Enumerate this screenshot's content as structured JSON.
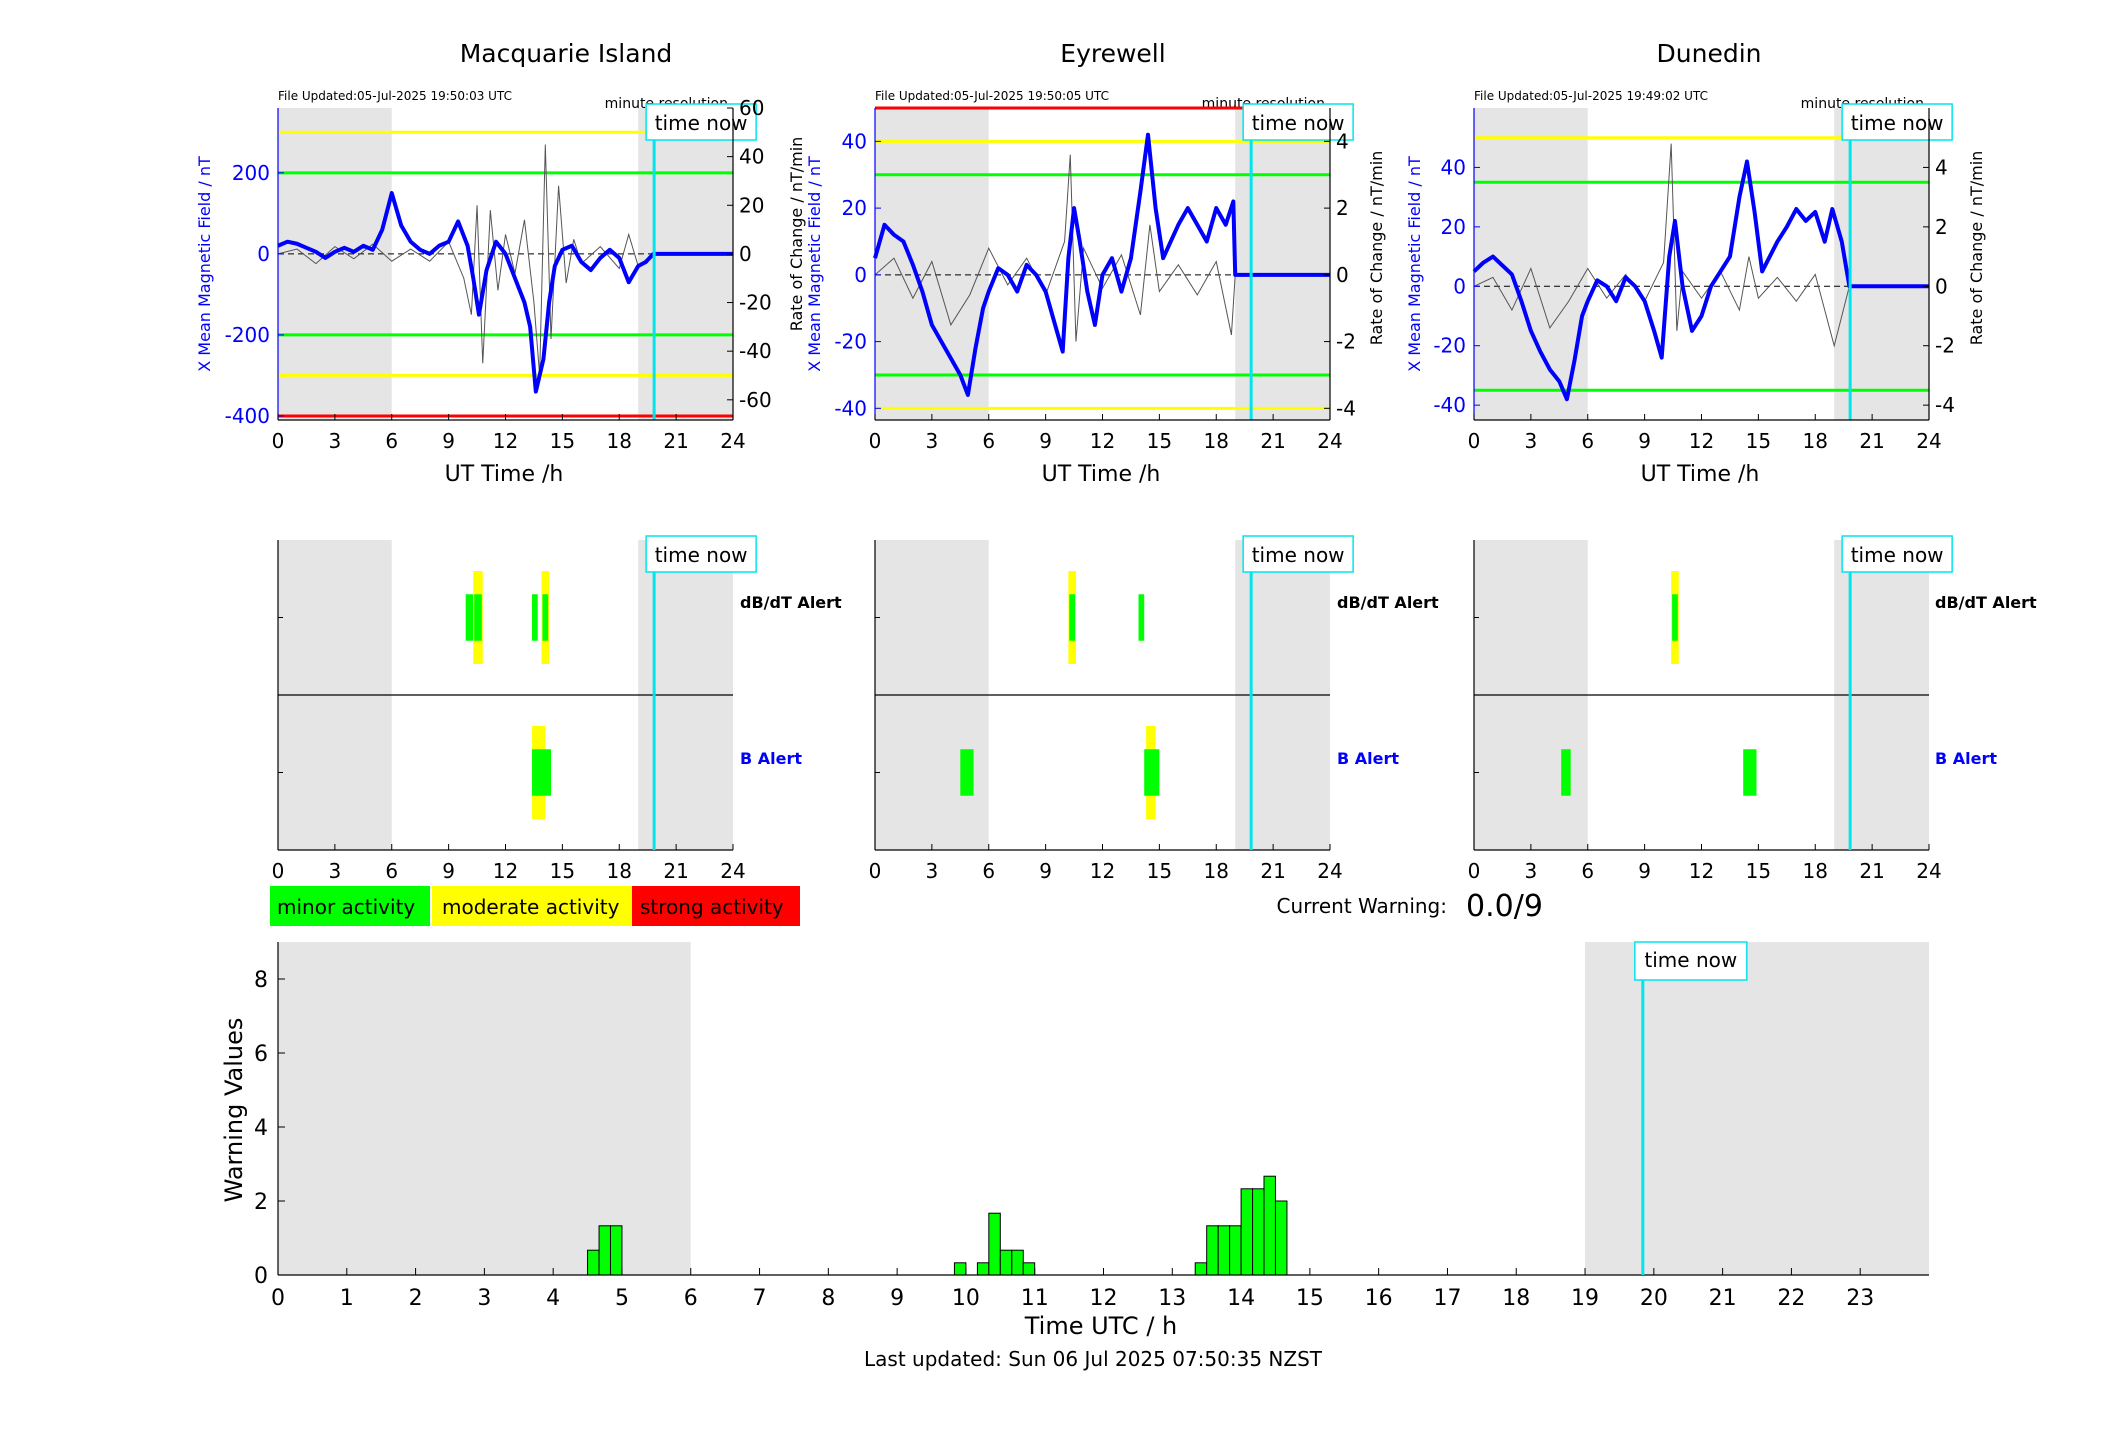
{
  "colors": {
    "field": "#0000ff",
    "rate": "#555555",
    "minor": "#00ff00",
    "moderate": "#ffff00",
    "strong": "#ff0000",
    "time_now": "#00e5ee",
    "shade": "#e5e5e5"
  },
  "stations": [
    {
      "title": "Macquarie Island",
      "file_updated": "File Updated:05-Jul-2025 19:50:03 UTC",
      "resolution": "minute resolution",
      "time_now_label": "time now",
      "ylabel_left": "X Mean Magnetic Field / nT",
      "ylabel_right": "Rate of Change / nT/min",
      "xlabel": "UT Time /h",
      "left_ylim": [
        -410,
        360
      ],
      "left_ticks": [
        -400,
        -200,
        0,
        200
      ],
      "right_ylim": [
        -68.3,
        60
      ],
      "right_ticks": [
        -60,
        -40,
        -20,
        0,
        20,
        40,
        60
      ],
      "thresholds": [
        {
          "value": 300,
          "level": "moderate"
        },
        {
          "value": 200,
          "level": "minor"
        },
        {
          "value": -200,
          "level": "minor"
        },
        {
          "value": -300,
          "level": "moderate"
        },
        {
          "value": -400,
          "level": "strong"
        }
      ],
      "night_shade": [
        [
          0,
          6
        ],
        [
          19,
          24
        ]
      ],
      "time_now": 19.84,
      "field_series": [
        [
          0,
          20
        ],
        [
          0.5,
          30
        ],
        [
          1,
          25
        ],
        [
          1.5,
          15
        ],
        [
          2,
          5
        ],
        [
          2.5,
          -10
        ],
        [
          3,
          5
        ],
        [
          3.5,
          15
        ],
        [
          4,
          5
        ],
        [
          4.5,
          20
        ],
        [
          5,
          10
        ],
        [
          5.5,
          60
        ],
        [
          6,
          150
        ],
        [
          6.5,
          70
        ],
        [
          7,
          30
        ],
        [
          7.5,
          10
        ],
        [
          8,
          0
        ],
        [
          8.5,
          20
        ],
        [
          9,
          30
        ],
        [
          9.5,
          80
        ],
        [
          10,
          20
        ],
        [
          10.3,
          -60
        ],
        [
          10.6,
          -150
        ],
        [
          11,
          -40
        ],
        [
          11.5,
          30
        ],
        [
          12,
          0
        ],
        [
          12.5,
          -60
        ],
        [
          13,
          -120
        ],
        [
          13.3,
          -180
        ],
        [
          13.6,
          -340
        ],
        [
          14,
          -260
        ],
        [
          14.3,
          -120
        ],
        [
          14.6,
          -30
        ],
        [
          15,
          10
        ],
        [
          15.5,
          20
        ],
        [
          16,
          -20
        ],
        [
          16.5,
          -40
        ],
        [
          17,
          -10
        ],
        [
          17.5,
          10
        ],
        [
          18,
          -10
        ],
        [
          18.5,
          -70
        ],
        [
          19,
          -30
        ],
        [
          19.4,
          -20
        ],
        [
          19.8,
          0
        ],
        [
          24,
          0
        ]
      ],
      "rate_series": [
        [
          0,
          0
        ],
        [
          1,
          2
        ],
        [
          2,
          -4
        ],
        [
          3,
          3
        ],
        [
          4,
          -2
        ],
        [
          5,
          4
        ],
        [
          6,
          -3
        ],
        [
          7,
          2
        ],
        [
          8,
          -3
        ],
        [
          9,
          5
        ],
        [
          9.8,
          -10
        ],
        [
          10.2,
          -25
        ],
        [
          10.5,
          20
        ],
        [
          10.8,
          -45
        ],
        [
          11.2,
          18
        ],
        [
          11.6,
          -15
        ],
        [
          12,
          8
        ],
        [
          12.5,
          -8
        ],
        [
          13,
          14
        ],
        [
          13.5,
          -20
        ],
        [
          13.8,
          -50
        ],
        [
          14.1,
          45
        ],
        [
          14.4,
          -35
        ],
        [
          14.8,
          28
        ],
        [
          15.2,
          -12
        ],
        [
          15.6,
          6
        ],
        [
          16,
          -4
        ],
        [
          17,
          3
        ],
        [
          18,
          -6
        ],
        [
          18.5,
          8
        ],
        [
          19,
          -5
        ],
        [
          19.8,
          0
        ],
        [
          24,
          0
        ]
      ],
      "alerts": {
        "row1_label": "dB/dT Alert",
        "row2_label": "B Alert",
        "row1": [
          {
            "start": 9.9,
            "end": 10.3,
            "level": "minor",
            "size": 0.4
          },
          {
            "start": 10.3,
            "end": 10.8,
            "level": "moderate",
            "size": 0.8
          },
          {
            "start": 10.35,
            "end": 10.75,
            "level": "minor",
            "size": 0.4
          },
          {
            "start": 13.4,
            "end": 13.7,
            "level": "minor",
            "size": 0.4
          },
          {
            "start": 13.9,
            "end": 14.3,
            "level": "moderate",
            "size": 0.8
          },
          {
            "start": 13.95,
            "end": 14.25,
            "level": "minor",
            "size": 0.4
          }
        ],
        "row2": [
          {
            "start": 13.4,
            "end": 14.1,
            "level": "moderate",
            "size": 0.8
          },
          {
            "start": 13.4,
            "end": 14.4,
            "level": "minor",
            "size": 0.4
          }
        ]
      }
    },
    {
      "title": "Eyrewell",
      "file_updated": "File Updated:05-Jul-2025 19:50:05 UTC",
      "resolution": "minute resolution",
      "time_now_label": "time now",
      "ylabel_left": "X Mean Magnetic Field / nT",
      "ylabel_right": "Rate of Change / nT/min",
      "xlabel": "UT Time /h",
      "left_ylim": [
        -43.5,
        50
      ],
      "left_ticks": [
        -40,
        -20,
        0,
        20,
        40
      ],
      "right_ylim": [
        -4.35,
        5
      ],
      "right_ticks": [
        -4,
        -2,
        0,
        2,
        4
      ],
      "thresholds": [
        {
          "value": 50,
          "level": "strong"
        },
        {
          "value": 40,
          "level": "moderate"
        },
        {
          "value": 30,
          "level": "minor"
        },
        {
          "value": -30,
          "level": "minor"
        },
        {
          "value": -40,
          "level": "moderate"
        }
      ],
      "night_shade": [
        [
          0,
          6
        ],
        [
          19,
          24
        ]
      ],
      "time_now": 19.84,
      "field_series": [
        [
          0,
          5
        ],
        [
          0.5,
          15
        ],
        [
          1,
          12
        ],
        [
          1.5,
          10
        ],
        [
          2,
          3
        ],
        [
          2.5,
          -5
        ],
        [
          3,
          -15
        ],
        [
          3.5,
          -20
        ],
        [
          4,
          -25
        ],
        [
          4.5,
          -30
        ],
        [
          4.9,
          -36
        ],
        [
          5.3,
          -22
        ],
        [
          5.7,
          -10
        ],
        [
          6,
          -5
        ],
        [
          6.5,
          2
        ],
        [
          7,
          0
        ],
        [
          7.5,
          -5
        ],
        [
          8,
          3
        ],
        [
          8.5,
          0
        ],
        [
          9,
          -5
        ],
        [
          9.5,
          -15
        ],
        [
          9.9,
          -23
        ],
        [
          10.2,
          5
        ],
        [
          10.5,
          20
        ],
        [
          10.8,
          10
        ],
        [
          11.2,
          -5
        ],
        [
          11.6,
          -15
        ],
        [
          12,
          0
        ],
        [
          12.5,
          5
        ],
        [
          13,
          -5
        ],
        [
          13.5,
          5
        ],
        [
          14,
          25
        ],
        [
          14.4,
          42
        ],
        [
          14.8,
          20
        ],
        [
          15.2,
          5
        ],
        [
          15.6,
          10
        ],
        [
          16,
          15
        ],
        [
          16.5,
          20
        ],
        [
          17,
          15
        ],
        [
          17.5,
          10
        ],
        [
          18,
          20
        ],
        [
          18.5,
          15
        ],
        [
          18.9,
          22
        ],
        [
          19,
          0
        ],
        [
          24,
          0
        ]
      ],
      "rate_series": [
        [
          0,
          0
        ],
        [
          1,
          0.5
        ],
        [
          2,
          -0.7
        ],
        [
          3,
          0.4
        ],
        [
          4,
          -1.5
        ],
        [
          5,
          -0.6
        ],
        [
          6,
          0.8
        ],
        [
          7,
          -0.3
        ],
        [
          8,
          0.5
        ],
        [
          9,
          -0.6
        ],
        [
          10,
          1
        ],
        [
          10.3,
          3.6
        ],
        [
          10.6,
          -2
        ],
        [
          11,
          0.8
        ],
        [
          12,
          -0.4
        ],
        [
          13,
          0.6
        ],
        [
          14,
          -1.2
        ],
        [
          14.5,
          1.5
        ],
        [
          15,
          -0.5
        ],
        [
          16,
          0.3
        ],
        [
          17,
          -0.6
        ],
        [
          18,
          0.4
        ],
        [
          18.8,
          -1.8
        ],
        [
          19,
          0
        ],
        [
          24,
          0
        ]
      ],
      "alerts": {
        "row1_label": "dB/dT Alert",
        "row2_label": "B Alert",
        "row1": [
          {
            "start": 10.2,
            "end": 10.6,
            "level": "moderate",
            "size": 0.8
          },
          {
            "start": 10.25,
            "end": 10.55,
            "level": "minor",
            "size": 0.4
          },
          {
            "start": 13.9,
            "end": 14.2,
            "level": "minor",
            "size": 0.4
          }
        ],
        "row2": [
          {
            "start": 4.5,
            "end": 5.2,
            "level": "minor",
            "size": 0.4
          },
          {
            "start": 14.3,
            "end": 14.8,
            "level": "moderate",
            "size": 0.8
          },
          {
            "start": 14.2,
            "end": 15.0,
            "level": "minor",
            "size": 0.4
          }
        ]
      }
    },
    {
      "title": "Dunedin",
      "file_updated": "File Updated:05-Jul-2025 19:49:02 UTC",
      "resolution": "minute resolution",
      "time_now_label": "time now",
      "ylabel_left": "X Mean Magnetic Field / nT",
      "ylabel_right": "Rate of Change / nT/min",
      "xlabel": "UT Time /h",
      "left_ylim": [
        -45,
        60
      ],
      "left_ticks": [
        -40,
        -20,
        0,
        20,
        40
      ],
      "right_ylim": [
        -4.5,
        6
      ],
      "right_ticks": [
        -4,
        -2,
        0,
        2,
        4
      ],
      "thresholds": [
        {
          "value": 50,
          "level": "moderate"
        },
        {
          "value": 35,
          "level": "minor"
        },
        {
          "value": -35,
          "level": "minor"
        }
      ],
      "night_shade": [
        [
          0,
          6
        ],
        [
          19,
          24
        ]
      ],
      "time_now": 19.84,
      "field_series": [
        [
          0,
          5
        ],
        [
          0.5,
          8
        ],
        [
          1,
          10
        ],
        [
          1.5,
          7
        ],
        [
          2,
          4
        ],
        [
          2.5,
          -5
        ],
        [
          3,
          -15
        ],
        [
          3.5,
          -22
        ],
        [
          4,
          -28
        ],
        [
          4.5,
          -32
        ],
        [
          4.9,
          -38
        ],
        [
          5.3,
          -25
        ],
        [
          5.7,
          -10
        ],
        [
          6,
          -5
        ],
        [
          6.5,
          2
        ],
        [
          7,
          0
        ],
        [
          7.5,
          -5
        ],
        [
          8,
          3
        ],
        [
          8.5,
          0
        ],
        [
          9,
          -5
        ],
        [
          9.5,
          -15
        ],
        [
          9.9,
          -24
        ],
        [
          10.3,
          10
        ],
        [
          10.6,
          22
        ],
        [
          11,
          0
        ],
        [
          11.5,
          -15
        ],
        [
          12,
          -10
        ],
        [
          12.5,
          0
        ],
        [
          13,
          5
        ],
        [
          13.5,
          10
        ],
        [
          14,
          30
        ],
        [
          14.4,
          42
        ],
        [
          14.8,
          25
        ],
        [
          15.2,
          5
        ],
        [
          15.6,
          10
        ],
        [
          16,
          15
        ],
        [
          16.5,
          20
        ],
        [
          17,
          26
        ],
        [
          17.5,
          22
        ],
        [
          18,
          25
        ],
        [
          18.5,
          15
        ],
        [
          18.9,
          26
        ],
        [
          19.4,
          15
        ],
        [
          19.8,
          0
        ],
        [
          24,
          0
        ]
      ],
      "rate_series": [
        [
          0,
          0
        ],
        [
          1,
          0.3
        ],
        [
          2,
          -0.8
        ],
        [
          3,
          0.6
        ],
        [
          4,
          -1.4
        ],
        [
          5,
          -0.5
        ],
        [
          6,
          0.6
        ],
        [
          7,
          -0.4
        ],
        [
          8,
          0.4
        ],
        [
          9,
          -0.5
        ],
        [
          10,
          0.8
        ],
        [
          10.4,
          4.8
        ],
        [
          10.7,
          -1.5
        ],
        [
          11,
          0.5
        ],
        [
          12,
          -0.4
        ],
        [
          13,
          0.5
        ],
        [
          14,
          -0.8
        ],
        [
          14.5,
          1
        ],
        [
          15,
          -0.4
        ],
        [
          16,
          0.3
        ],
        [
          17,
          -0.5
        ],
        [
          18,
          0.4
        ],
        [
          19,
          -2
        ],
        [
          19.8,
          0
        ],
        [
          24,
          0
        ]
      ],
      "alerts": {
        "row1_label": "dB/dT Alert",
        "row2_label": "B Alert",
        "row1": [
          {
            "start": 10.4,
            "end": 10.8,
            "level": "moderate",
            "size": 0.8
          },
          {
            "start": 10.45,
            "end": 10.75,
            "level": "minor",
            "size": 0.4
          }
        ],
        "row2": [
          {
            "start": 4.6,
            "end": 5.1,
            "level": "minor",
            "size": 0.4
          },
          {
            "start": 14.2,
            "end": 14.9,
            "level": "minor",
            "size": 0.4
          }
        ]
      }
    }
  ],
  "alert_xticks": [
    0,
    3,
    6,
    9,
    12,
    15,
    18,
    21,
    24
  ],
  "legend": [
    {
      "label": "minor activity",
      "level": "minor"
    },
    {
      "label": "moderate activity",
      "level": "moderate"
    },
    {
      "label": "strong activity",
      "level": "strong"
    }
  ],
  "current_warning": {
    "label": "Current Warning:",
    "value": "0.0/9"
  },
  "warning_chart": {
    "ylabel": "Warning Values",
    "xlabel": "Time UTC / h",
    "time_now_label": "time now",
    "ylim": [
      0,
      9
    ],
    "yticks": [
      0,
      2,
      4,
      6,
      8
    ],
    "xlim": [
      0,
      24
    ],
    "xticks": [
      0,
      1,
      2,
      3,
      4,
      5,
      6,
      7,
      8,
      9,
      10,
      11,
      12,
      13,
      14,
      15,
      16,
      17,
      18,
      19,
      20,
      21,
      22,
      23
    ],
    "night_shade": [
      [
        0,
        6
      ],
      [
        19,
        24
      ]
    ],
    "time_now": 19.84
  },
  "chart_data": {
    "type": "bar",
    "title": "",
    "xlabel": "Time UTC / h",
    "ylabel": "Warning Values",
    "ylim": [
      0,
      9
    ],
    "bin_width_h": 0.1667,
    "x": [
      4.5,
      4.667,
      4.833,
      9.833,
      10.167,
      10.333,
      10.5,
      10.667,
      10.833,
      13.333,
      13.5,
      13.667,
      13.833,
      14.0,
      14.167,
      14.333,
      14.5
    ],
    "values": [
      0.67,
      1.33,
      1.33,
      0.33,
      0.33,
      1.67,
      0.67,
      0.67,
      0.33,
      0.33,
      1.33,
      1.33,
      1.33,
      2.33,
      2.33,
      2.67,
      2.0
    ],
    "grid": false
  },
  "footer": {
    "last_updated": "Last updated: Sun 06 Jul 2025 07:50:35 NZST"
  }
}
